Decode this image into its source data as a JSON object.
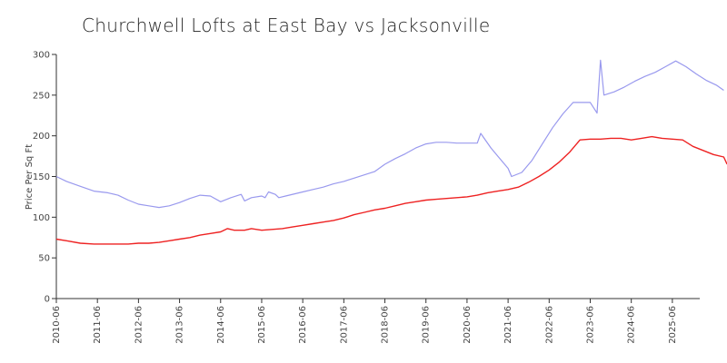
{
  "chart_data": {
    "type": "line",
    "title": "Churchwell Lofts at East Bay vs Jacksonville",
    "xlabel": "",
    "ylabel": "Price Per Sq Ft",
    "ylim": [
      0,
      300
    ],
    "yticks": [
      0,
      50,
      100,
      150,
      200,
      250,
      300
    ],
    "xticks": [
      "2010-06",
      "2011-06",
      "2012-06",
      "2013-06",
      "2014-06",
      "2015-06",
      "2016-06",
      "2017-06",
      "2018-06",
      "2019-06",
      "2020-06",
      "2021-06",
      "2022-06",
      "2023-06",
      "2024-06",
      "2025-06"
    ],
    "x_range": [
      "2010-06",
      "2026-02"
    ],
    "grid": false,
    "legend": "none",
    "series": [
      {
        "color": "#9999ee",
        "points": [
          [
            "2010-06",
            150
          ],
          [
            "2010-09",
            144
          ],
          [
            "2011-01",
            138
          ],
          [
            "2011-05",
            132
          ],
          [
            "2011-09",
            130
          ],
          [
            "2011-12",
            127
          ],
          [
            "2012-03",
            121
          ],
          [
            "2012-06",
            116
          ],
          [
            "2012-09",
            114
          ],
          [
            "2012-12",
            112
          ],
          [
            "2013-03",
            114
          ],
          [
            "2013-06",
            118
          ],
          [
            "2013-09",
            123
          ],
          [
            "2013-12",
            127
          ],
          [
            "2014-03",
            126
          ],
          [
            "2014-06",
            119
          ],
          [
            "2014-09",
            124
          ],
          [
            "2014-12",
            128
          ],
          [
            "2015-01",
            120
          ],
          [
            "2015-03",
            124
          ],
          [
            "2015-06",
            126
          ],
          [
            "2015-07",
            124
          ],
          [
            "2015-08",
            131
          ],
          [
            "2015-10",
            128
          ],
          [
            "2015-11",
            124
          ],
          [
            "2016-01",
            126
          ],
          [
            "2016-06",
            131
          ],
          [
            "2016-09",
            134
          ],
          [
            "2016-12",
            137
          ],
          [
            "2017-03",
            141
          ],
          [
            "2017-06",
            144
          ],
          [
            "2017-09",
            148
          ],
          [
            "2017-12",
            152
          ],
          [
            "2018-03",
            156
          ],
          [
            "2018-06",
            165
          ],
          [
            "2018-09",
            172
          ],
          [
            "2018-12",
            178
          ],
          [
            "2019-03",
            185
          ],
          [
            "2019-06",
            190
          ],
          [
            "2019-09",
            192
          ],
          [
            "2019-12",
            192
          ],
          [
            "2020-03",
            191
          ],
          [
            "2020-06",
            191
          ],
          [
            "2020-09",
            191
          ],
          [
            "2020-10",
            203
          ],
          [
            "2021-01",
            185
          ],
          [
            "2021-03",
            175
          ],
          [
            "2021-06",
            160
          ],
          [
            "2021-07",
            150
          ],
          [
            "2021-10",
            155
          ],
          [
            "2022-01",
            170
          ],
          [
            "2022-04",
            190
          ],
          [
            "2022-07",
            210
          ],
          [
            "2022-10",
            227
          ],
          [
            "2023-01",
            241
          ],
          [
            "2023-04",
            241
          ],
          [
            "2023-06",
            241
          ],
          [
            "2023-08",
            228
          ],
          [
            "2023-09",
            293
          ],
          [
            "2023-10",
            250
          ],
          [
            "2024-01",
            254
          ],
          [
            "2024-04",
            260
          ],
          [
            "2024-07",
            267
          ],
          [
            "2024-10",
            273
          ],
          [
            "2025-01",
            278
          ],
          [
            "2025-04",
            285
          ],
          [
            "2025-07",
            292
          ],
          [
            "2025-10",
            285
          ],
          [
            "2026-01",
            276
          ],
          [
            "2026-04",
            268
          ],
          [
            "2026-07",
            262
          ],
          [
            "2026-09",
            256
          ]
        ]
      },
      {
        "color": "#ee2222",
        "points": [
          [
            "2010-06",
            73
          ],
          [
            "2010-09",
            71
          ],
          [
            "2011-01",
            68
          ],
          [
            "2011-05",
            67
          ],
          [
            "2011-09",
            67
          ],
          [
            "2011-12",
            67
          ],
          [
            "2012-03",
            67
          ],
          [
            "2012-06",
            68
          ],
          [
            "2012-09",
            68
          ],
          [
            "2012-12",
            69
          ],
          [
            "2013-03",
            71
          ],
          [
            "2013-06",
            73
          ],
          [
            "2013-09",
            75
          ],
          [
            "2013-12",
            78
          ],
          [
            "2014-03",
            80
          ],
          [
            "2014-06",
            82
          ],
          [
            "2014-08",
            86
          ],
          [
            "2014-10",
            84
          ],
          [
            "2015-01",
            84
          ],
          [
            "2015-03",
            86
          ],
          [
            "2015-06",
            84
          ],
          [
            "2015-09",
            85
          ],
          [
            "2015-12",
            86
          ],
          [
            "2016-03",
            88
          ],
          [
            "2016-06",
            90
          ],
          [
            "2016-09",
            92
          ],
          [
            "2016-12",
            94
          ],
          [
            "2017-03",
            96
          ],
          [
            "2017-06",
            99
          ],
          [
            "2017-09",
            103
          ],
          [
            "2017-12",
            106
          ],
          [
            "2018-03",
            109
          ],
          [
            "2018-06",
            111
          ],
          [
            "2018-09",
            114
          ],
          [
            "2018-12",
            117
          ],
          [
            "2019-03",
            119
          ],
          [
            "2019-06",
            121
          ],
          [
            "2019-09",
            122
          ],
          [
            "2019-12",
            123
          ],
          [
            "2020-03",
            124
          ],
          [
            "2020-06",
            125
          ],
          [
            "2020-09",
            127
          ],
          [
            "2020-12",
            130
          ],
          [
            "2021-03",
            132
          ],
          [
            "2021-06",
            134
          ],
          [
            "2021-09",
            137
          ],
          [
            "2021-12",
            143
          ],
          [
            "2022-03",
            150
          ],
          [
            "2022-06",
            158
          ],
          [
            "2022-09",
            168
          ],
          [
            "2022-12",
            180
          ],
          [
            "2023-03",
            195
          ],
          [
            "2023-06",
            196
          ],
          [
            "2023-09",
            196
          ],
          [
            "2023-12",
            197
          ],
          [
            "2024-03",
            197
          ],
          [
            "2024-06",
            195
          ],
          [
            "2024-09",
            197
          ],
          [
            "2024-12",
            199
          ],
          [
            "2025-03",
            197
          ],
          [
            "2025-06",
            196
          ],
          [
            "2025-09",
            195
          ],
          [
            "2025-12",
            187
          ],
          [
            "2026-03",
            182
          ],
          [
            "2026-06",
            177
          ],
          [
            "2026-09",
            174
          ],
          [
            "2026-10",
            165
          ]
        ]
      }
    ]
  }
}
